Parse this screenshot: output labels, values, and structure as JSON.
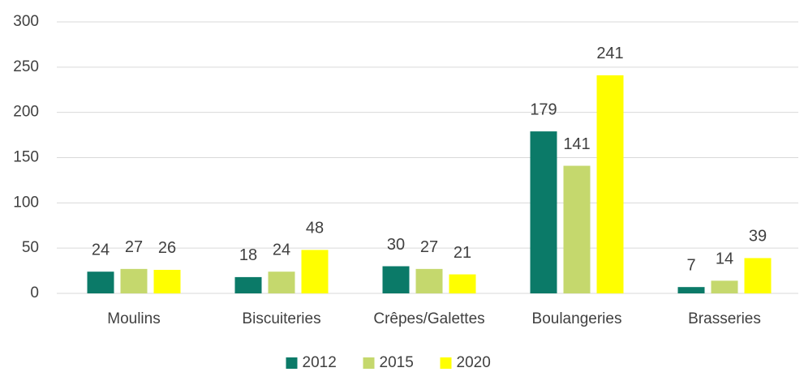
{
  "chart_data": {
    "type": "bar",
    "categories": [
      "Moulins",
      "Biscuiteries",
      "Crêpes/Galettes",
      "Boulangeries",
      "Brasseries"
    ],
    "series": [
      {
        "name": "2012",
        "color": "#0b7a68",
        "values": [
          24,
          18,
          30,
          179,
          7
        ]
      },
      {
        "name": "2015",
        "color": "#c5d86d",
        "values": [
          27,
          24,
          27,
          141,
          14
        ]
      },
      {
        "name": "2020",
        "color": "#ffff00",
        "values": [
          26,
          48,
          21,
          241,
          39
        ]
      }
    ],
    "ylim": [
      0,
      300
    ],
    "yticks": [
      0,
      50,
      100,
      150,
      200,
      250,
      300
    ],
    "grid": true,
    "legend": "bottom"
  }
}
